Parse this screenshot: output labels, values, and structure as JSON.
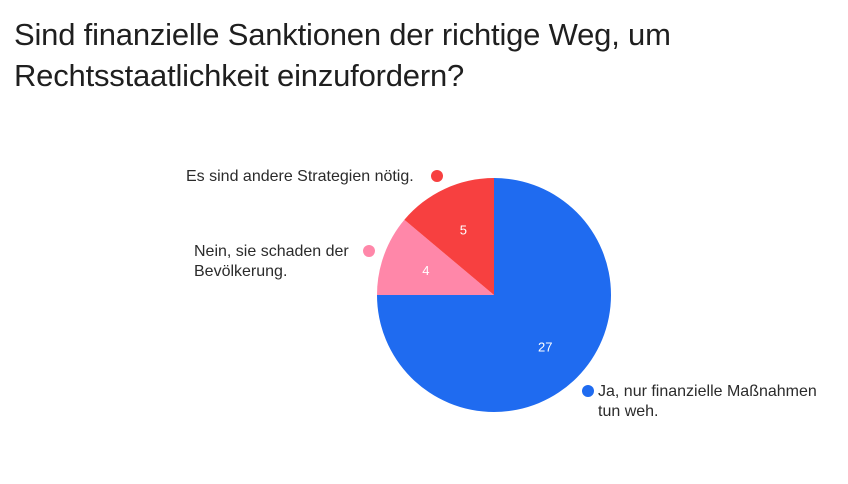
{
  "chart_data": {
    "type": "pie",
    "title": "Sind finanzielle Sanktionen der richtige Weg, um Rechtsstaatlichkeit einzufordern?",
    "slices": [
      {
        "label": "Ja, nur finanzielle Maßnahmen tun weh.",
        "value": 27,
        "color": "#1f6bf0"
      },
      {
        "label": "Nein, sie schaden der Bevölkerung.",
        "value": 4,
        "color": "#ff87a9"
      },
      {
        "label": "Es sind andere Strategien nötig.",
        "value": 5,
        "color": "#f74040"
      }
    ],
    "start_angle": "12 o'clock",
    "direction": "clockwise",
    "legend": "labels next to slices"
  }
}
